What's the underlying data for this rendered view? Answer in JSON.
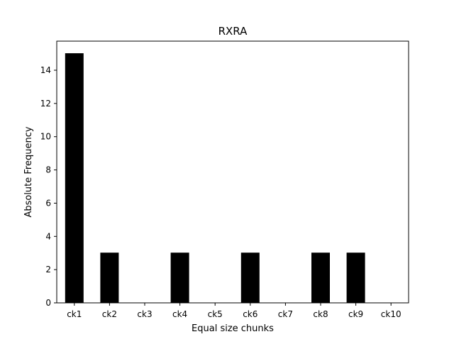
{
  "chart_data": {
    "type": "bar",
    "title": "RXRA",
    "xlabel": "Equal size chunks",
    "ylabel": "Absolute Frequency",
    "categories": [
      "ck1",
      "ck2",
      "ck3",
      "ck4",
      "ck5",
      "ck6",
      "ck7",
      "ck8",
      "ck9",
      "ck10"
    ],
    "values": [
      15,
      3,
      0,
      3,
      0,
      3,
      0,
      3,
      3,
      0
    ],
    "ylim": [
      0,
      15.75
    ],
    "yticks": [
      0,
      2,
      4,
      6,
      8,
      10,
      12,
      14
    ],
    "grid": false,
    "legend": "none",
    "bar_color": "#000000"
  }
}
